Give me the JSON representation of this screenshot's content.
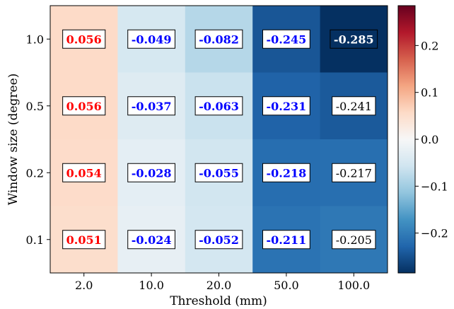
{
  "chart_data": {
    "type": "heatmap",
    "xlabel": "Threshold (mm)",
    "ylabel": "Window size (degree)",
    "x_categories": [
      "2.0",
      "10.0",
      "20.0",
      "50.0",
      "100.0"
    ],
    "y_categories": [
      "1.0",
      "0.5",
      "0.2",
      "0.1"
    ],
    "values": [
      [
        0.056,
        -0.049,
        -0.082,
        -0.245,
        -0.285
      ],
      [
        0.056,
        -0.037,
        -0.063,
        -0.231,
        -0.241
      ],
      [
        0.054,
        -0.028,
        -0.055,
        -0.218,
        -0.217
      ],
      [
        0.051,
        -0.024,
        -0.052,
        -0.211,
        -0.205
      ]
    ],
    "cell_labels": [
      [
        "0.056",
        "-0.049",
        "-0.082",
        "-0.245",
        "-0.285"
      ],
      [
        "0.056",
        "-0.037",
        "-0.063",
        "-0.231",
        "-0.241"
      ],
      [
        "0.054",
        "-0.028",
        "-0.055",
        "-0.218",
        "-0.217"
      ],
      [
        "0.051",
        "-0.024",
        "-0.052",
        "-0.211",
        "-0.205"
      ]
    ],
    "label_styles": [
      [
        "bold-red",
        "bold-blue",
        "bold-blue",
        "bold-blue",
        "bold-white"
      ],
      [
        "bold-red",
        "bold-blue",
        "bold-blue",
        "bold-blue",
        "plain-black"
      ],
      [
        "bold-red",
        "bold-blue",
        "bold-blue",
        "bold-blue",
        "plain-black"
      ],
      [
        "bold-red",
        "bold-blue",
        "bold-blue",
        "bold-blue",
        "plain-black"
      ]
    ],
    "colorbar": {
      "colormap": "RdBu_r",
      "vmin": -0.285,
      "vmax": 0.285,
      "ticks": [
        -0.2,
        -0.1,
        0.0,
        0.1,
        0.2
      ],
      "tick_labels": [
        "−0.2",
        "−0.1",
        "0.0",
        "0.1",
        "0.2"
      ]
    },
    "colors": {
      "label_red": "#ff0000",
      "label_blue": "#0000ff",
      "label_white": "#ffffff",
      "label_black": "#000000"
    }
  }
}
